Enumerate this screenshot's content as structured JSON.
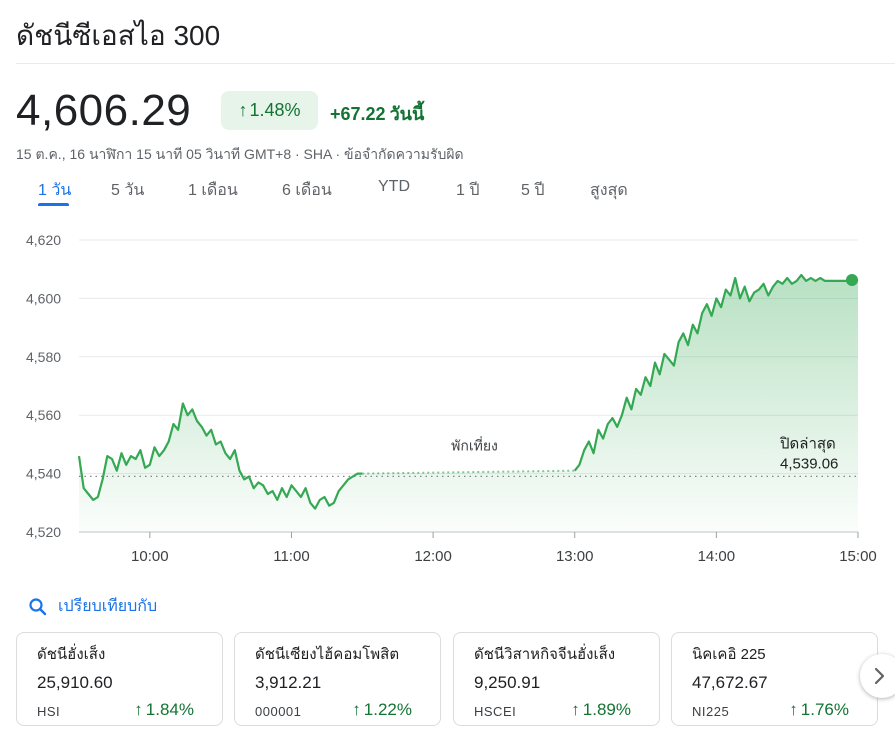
{
  "title": "ดัชนีซีเอสไอ 300",
  "price": "4,606.29",
  "change_pct": "1.48%",
  "change_abs": "+67.22",
  "change_period": "วันนี้",
  "meta": "15 ต.ค., 16 นาฬิกา 15 นาที 05 วินาที GMT+8 · SHA · ข้อจำกัดความรับผิด",
  "tabs": [
    "1 วัน",
    "5 วัน",
    "1 เดือน",
    "6 เดือน",
    "YTD",
    "1 ปี",
    "5 ปี",
    "สูงสุด"
  ],
  "active_tab": "1 วัน",
  "compare_label": "เปรียบเทียบกับ",
  "colors": {
    "up": "#137333",
    "line": "#34a853",
    "accent": "#1a73e8"
  },
  "chart_data": {
    "type": "area",
    "ylim": [
      4520,
      4620
    ],
    "yticks": [
      "4,620",
      "4,600",
      "4,580",
      "4,560",
      "4,540",
      "4,520"
    ],
    "ytick_values": [
      4620,
      4600,
      4580,
      4560,
      4540,
      4520
    ],
    "xticks": [
      "10:00",
      "11:00",
      "12:00",
      "13:00",
      "14:00",
      "15:00"
    ],
    "xtick_values": [
      "10:00",
      "11:00",
      "12:00",
      "13:00",
      "14:00",
      "15:00"
    ],
    "x_start": "09:30",
    "x_end": "15:00",
    "break_label": "พักเที่ยง",
    "break": [
      "11:30",
      "13:00"
    ],
    "prev_close_label": "ปิดล่าสุด",
    "prev_close_value": "4,539.06",
    "prev_close": 4539.06,
    "grid": true,
    "series": [
      {
        "x": [
          "09:30",
          "09:32",
          "09:34",
          "09:36",
          "09:38",
          "09:40",
          "09:42",
          "09:44",
          "09:46",
          "09:48",
          "09:50",
          "09:52",
          "09:54",
          "09:56",
          "09:58",
          "10:00",
          "10:02",
          "10:04",
          "10:06",
          "10:08",
          "10:10",
          "10:12",
          "10:14",
          "10:16",
          "10:18",
          "10:20",
          "10:22",
          "10:24",
          "10:26",
          "10:28",
          "10:30",
          "10:32",
          "10:34",
          "10:36",
          "10:38",
          "10:40",
          "10:42",
          "10:44",
          "10:46",
          "10:48",
          "10:50",
          "10:52",
          "10:54",
          "10:56",
          "10:58",
          "11:00",
          "11:02",
          "11:04",
          "11:06",
          "11:08",
          "11:10",
          "11:12",
          "11:14",
          "11:16",
          "11:18",
          "11:20",
          "11:22",
          "11:24",
          "11:26",
          "11:28",
          "11:30",
          "13:00",
          "13:02",
          "13:04",
          "13:06",
          "13:08",
          "13:10",
          "13:12",
          "13:14",
          "13:16",
          "13:18",
          "13:20",
          "13:22",
          "13:24",
          "13:26",
          "13:28",
          "13:30",
          "13:32",
          "13:34",
          "13:36",
          "13:38",
          "13:40",
          "13:42",
          "13:44",
          "13:46",
          "13:48",
          "13:50",
          "13:52",
          "13:54",
          "13:56",
          "13:58",
          "14:00",
          "14:02",
          "14:04",
          "14:06",
          "14:08",
          "14:10",
          "14:12",
          "14:14",
          "14:16",
          "14:18",
          "14:20",
          "14:22",
          "14:24",
          "14:26",
          "14:28",
          "14:30",
          "14:32",
          "14:34",
          "14:36",
          "14:38",
          "14:40",
          "14:42",
          "14:44",
          "14:46",
          "14:48",
          "14:50",
          "14:52",
          "14:54",
          "14:56",
          "14:58",
          "15:00"
        ],
        "values": [
          4546,
          4535,
          4533,
          4531,
          4532,
          4538,
          4546,
          4545,
          4541,
          4547,
          4543,
          4546,
          4545,
          4548,
          4542,
          4543,
          4549,
          4546,
          4548,
          4551,
          4557,
          4555,
          4564,
          4560,
          4562,
          4558,
          4556,
          4553,
          4555,
          4550,
          4551,
          4547,
          4545,
          4548,
          4541,
          4538,
          4539,
          4535,
          4537,
          4536,
          4533,
          4534,
          4531,
          4535,
          4532,
          4536,
          4534,
          4532,
          4535,
          4530,
          4528,
          4531,
          4532,
          4529,
          4530,
          4534,
          4536,
          4538,
          4539,
          4540,
          4540,
          4541,
          4543,
          4548,
          4551,
          4547,
          4555,
          4552,
          4557,
          4559,
          4556,
          4560,
          4566,
          4562,
          4569,
          4567,
          4573,
          4570,
          4578,
          4574,
          4581,
          4579,
          4577,
          4585,
          4588,
          4584,
          4591,
          4588,
          4595,
          4598,
          4594,
          4600,
          4597,
          4603,
          4601,
          4607,
          4600,
          4604,
          4599,
          4602,
          4603,
          4605,
          4601,
          4604,
          4606,
          4605,
          4607,
          4605,
          4606,
          4608,
          4606,
          4607,
          4606,
          4607,
          4606,
          4606,
          4606,
          4606,
          4606,
          4606,
          4606,
          4606.29
        ]
      }
    ]
  },
  "comparisons": [
    {
      "name": "ดัชนีฮั่งเส็ง",
      "price": "25,910.60",
      "symbol": "HSI",
      "change": "1.84%"
    },
    {
      "name": "ดัชนีเซียงไฮ้คอมโพสิต",
      "price": "3,912.21",
      "symbol": "000001",
      "change": "1.22%"
    },
    {
      "name": "ดัชนีวิสาหกิจจีนฮั่งเส็ง",
      "price": "9,250.91",
      "symbol": "HSCEI",
      "change": "1.89%"
    },
    {
      "name": "นิคเคอิ 225",
      "price": "47,672.67",
      "symbol": "NI225",
      "change": "1.76%"
    }
  ]
}
